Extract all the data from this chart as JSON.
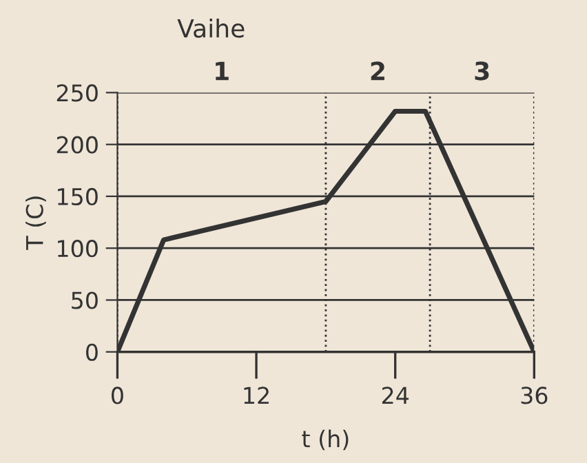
{
  "chart_data": {
    "type": "line",
    "xlabel": "t (h)",
    "ylabel": "T (C)",
    "x": [
      0,
      4,
      18,
      24,
      26.6,
      36
    ],
    "series": [
      {
        "color": "#333333",
        "values": [
          0,
          108,
          145,
          232,
          232,
          0
        ]
      }
    ],
    "xlim": [
      0,
      36
    ],
    "xticks": [
      0,
      12,
      24,
      36
    ],
    "ylim": [
      0,
      250
    ],
    "yticks": [
      0,
      50,
      100,
      150,
      200,
      250
    ],
    "grid": "y",
    "line_style": "solid",
    "marker": "none",
    "ref_lines": [
      {
        "axis": "x",
        "value": 0,
        "line_style": "dotted",
        "color": "#333333"
      },
      {
        "axis": "x",
        "value": 18,
        "line_style": "dotted",
        "color": "#333333"
      },
      {
        "axis": "x",
        "value": 27,
        "line_style": "dotted",
        "color": "#333333"
      },
      {
        "axis": "x",
        "value": 36,
        "line_style": "dotted",
        "color": "#333333"
      }
    ],
    "annotations": [
      "Vaihe",
      "1",
      "2",
      "3"
    ]
  }
}
